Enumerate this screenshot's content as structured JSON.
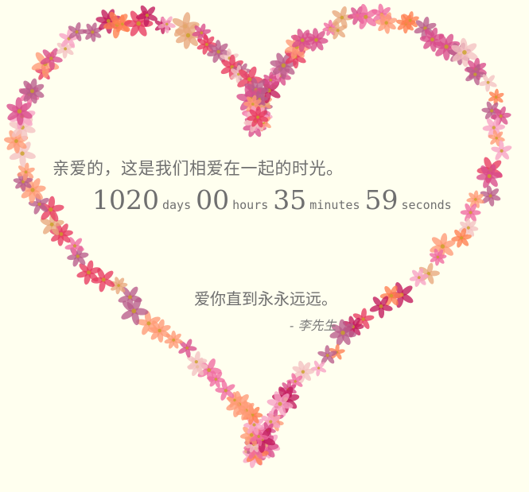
{
  "message": {
    "greeting": "亲爱的，这是我们相爱在一起的时光。",
    "closing": "爱你直到永永远远。",
    "signature": "- 李先生"
  },
  "timer": {
    "days": "1020",
    "days_label": "days",
    "hours": "00",
    "hours_label": "hours",
    "minutes": "35",
    "minutes_label": "minutes",
    "seconds": "59",
    "seconds_label": "seconds"
  },
  "style": {
    "background": "#ffffef",
    "text_color": "#6f6f6f",
    "flower_palette": [
      "#e83a5f",
      "#f06aa0",
      "#f7a1c4",
      "#ff7f50",
      "#d94c8a",
      "#f4c2c2",
      "#c2185b",
      "#ff9a76",
      "#e8a87c",
      "#b85c8a"
    ]
  }
}
